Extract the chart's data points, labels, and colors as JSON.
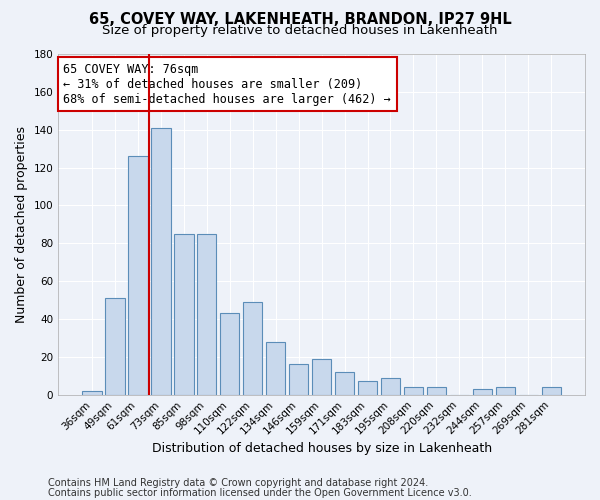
{
  "title": "65, COVEY WAY, LAKENHEATH, BRANDON, IP27 9HL",
  "subtitle": "Size of property relative to detached houses in Lakenheath",
  "xlabel": "Distribution of detached houses by size in Lakenheath",
  "ylabel": "Number of detached properties",
  "bar_color": "#c8d8ec",
  "bar_edge_color": "#5b8db8",
  "categories": [
    "36sqm",
    "49sqm",
    "61sqm",
    "73sqm",
    "85sqm",
    "98sqm",
    "110sqm",
    "122sqm",
    "134sqm",
    "146sqm",
    "159sqm",
    "171sqm",
    "183sqm",
    "195sqm",
    "208sqm",
    "220sqm",
    "232sqm",
    "244sqm",
    "257sqm",
    "269sqm",
    "281sqm"
  ],
  "values": [
    2,
    51,
    126,
    141,
    85,
    85,
    43,
    49,
    28,
    16,
    19,
    12,
    7,
    9,
    4,
    4,
    0,
    3,
    4,
    0,
    4
  ],
  "vline_x": 2.5,
  "vline_color": "#cc0000",
  "annotation_line1": "65 COVEY WAY: 76sqm",
  "annotation_line2": "← 31% of detached houses are smaller (209)",
  "annotation_line3": "68% of semi-detached houses are larger (462) →",
  "ylim": [
    0,
    180
  ],
  "yticks": [
    0,
    20,
    40,
    60,
    80,
    100,
    120,
    140,
    160,
    180
  ],
  "footer1": "Contains HM Land Registry data © Crown copyright and database right 2024.",
  "footer2": "Contains public sector information licensed under the Open Government Licence v3.0.",
  "background_color": "#eef2f9",
  "grid_color": "#ffffff",
  "title_fontsize": 10.5,
  "subtitle_fontsize": 9.5,
  "axis_label_fontsize": 9,
  "tick_fontsize": 7.5,
  "annotation_fontsize": 8.5,
  "footer_fontsize": 7
}
